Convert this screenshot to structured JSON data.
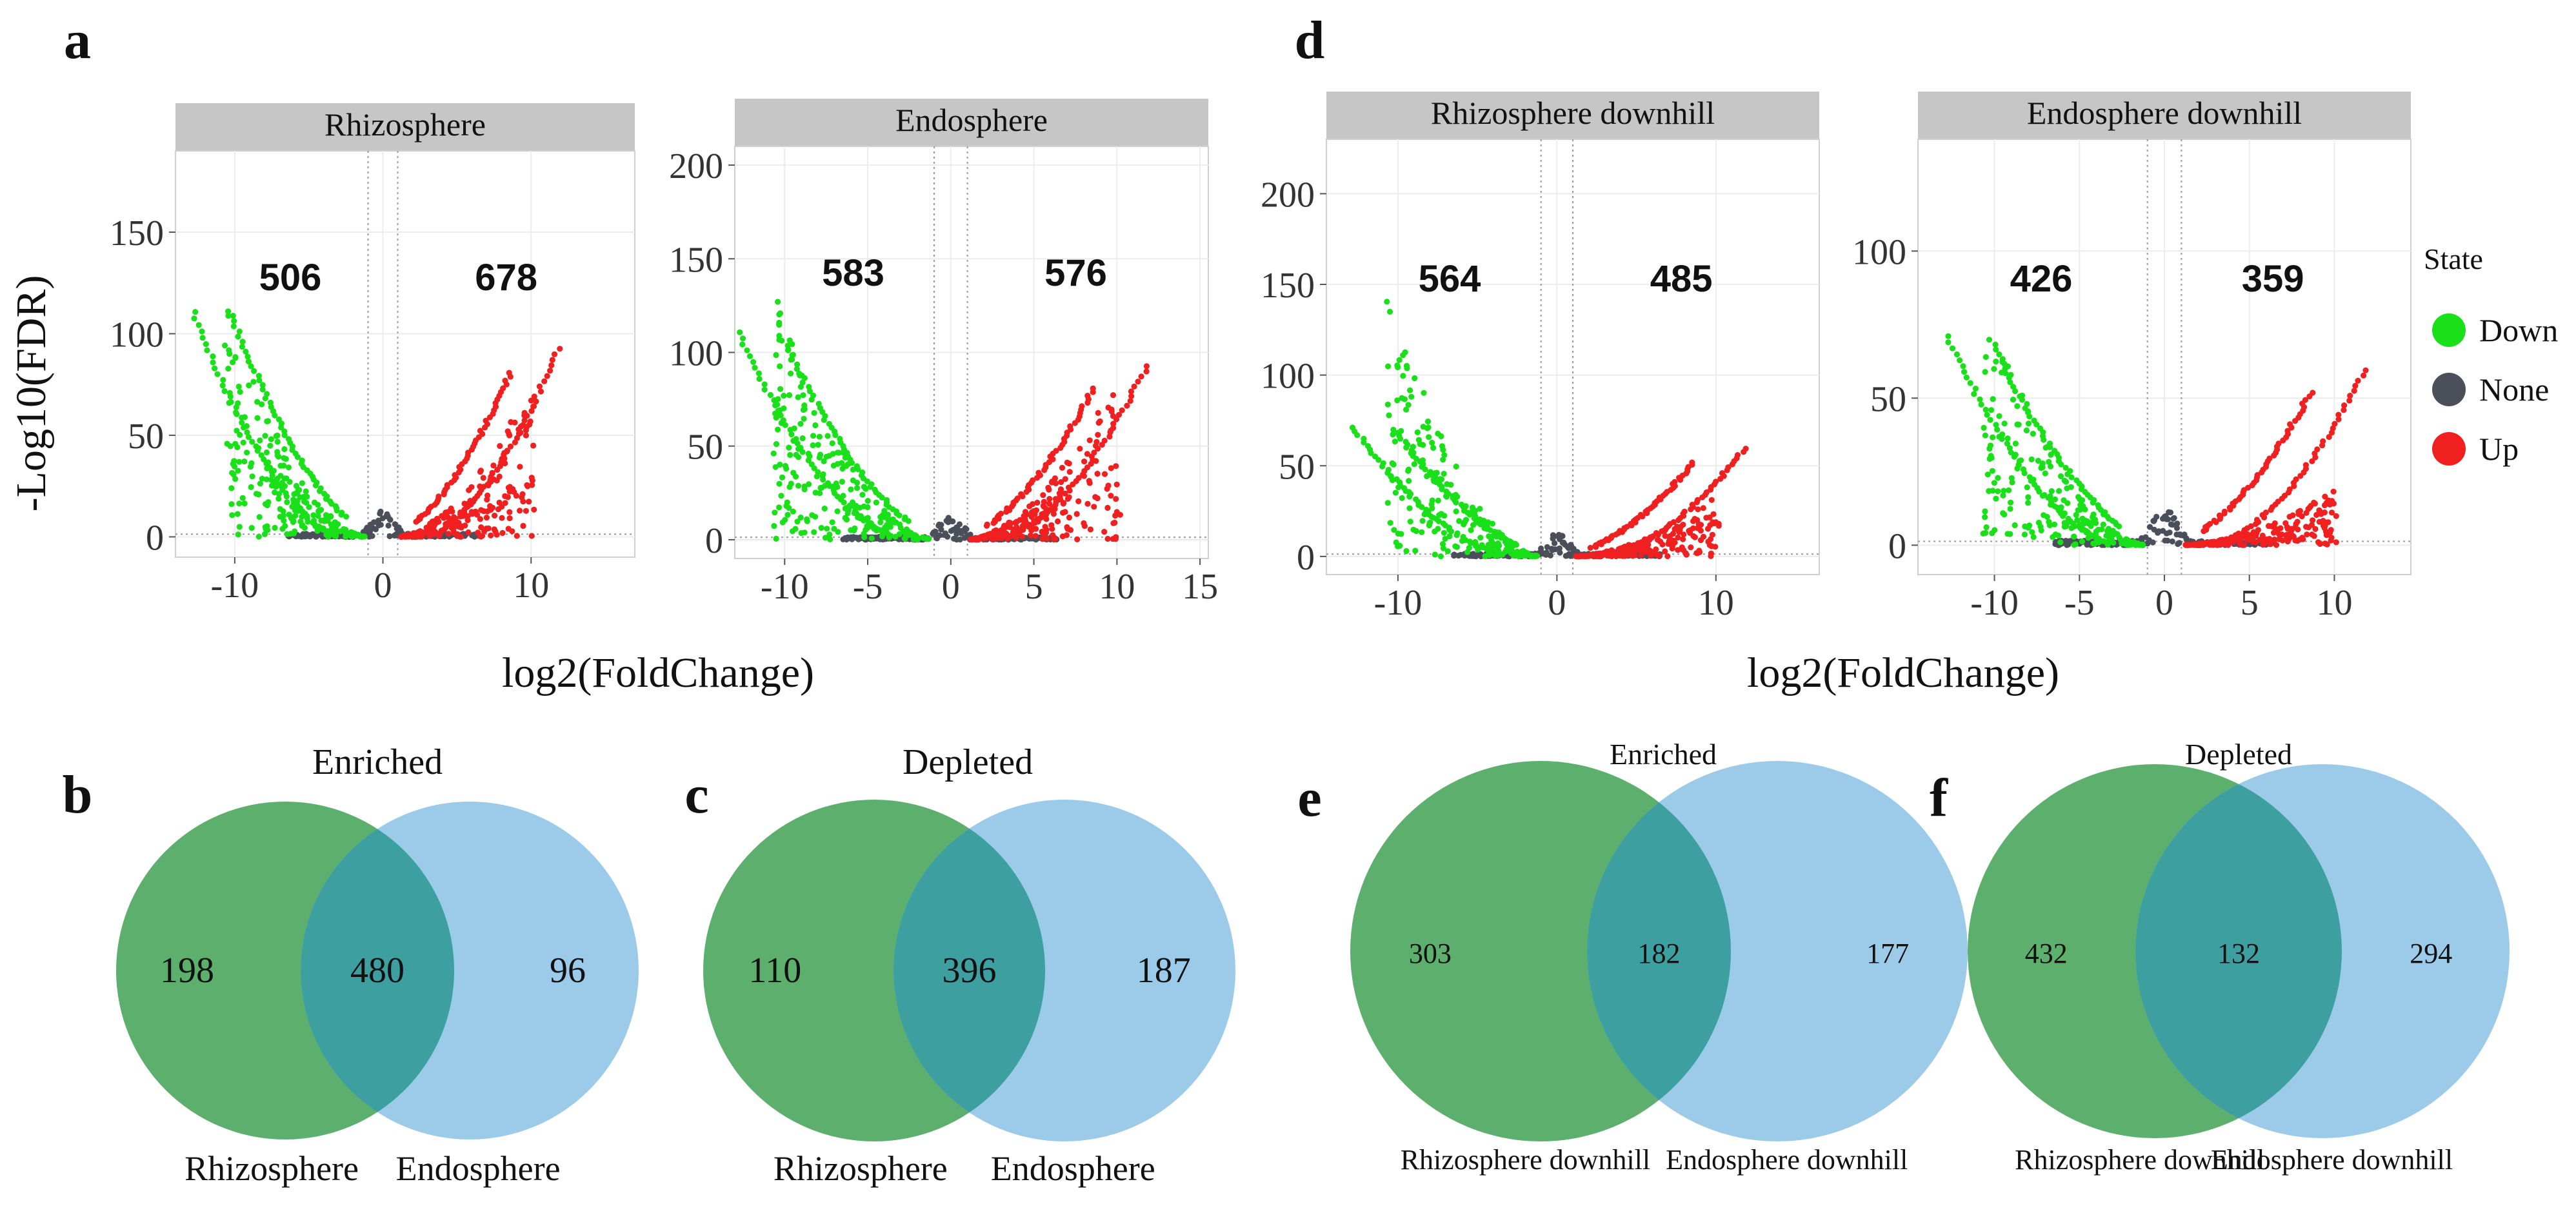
{
  "chart_data": [
    {
      "panel": "a",
      "type": "scatter",
      "panel_label": "a",
      "facets": [
        {
          "title": "Rhizosphere",
          "xlim": [
            -14,
            17
          ],
          "ylim": [
            -10,
            190
          ],
          "xticks": [
            -10,
            0,
            10
          ],
          "yticks": [
            0,
            50,
            100,
            150
          ],
          "down_count": "506",
          "up_count": "678"
        },
        {
          "title": "Endosphere",
          "xlim": [
            -13,
            15.5
          ],
          "ylim": [
            -10,
            210
          ],
          "xticks": [
            -10,
            -5,
            0,
            5,
            10,
            15
          ],
          "yticks": [
            0,
            50,
            100,
            150,
            200
          ],
          "down_count": "583",
          "up_count": "576"
        }
      ],
      "xlabel": "log2(FoldChange)",
      "ylabel": "-Log10(FDR)",
      "thresholds": {
        "x": [
          -1,
          1
        ],
        "y": 1.3
      }
    },
    {
      "panel": "d",
      "type": "scatter",
      "panel_label": "d",
      "facets": [
        {
          "title": "Rhizosphere downhill",
          "xlim": [
            -14.5,
            16.5
          ],
          "ylim": [
            -10,
            230
          ],
          "xticks": [
            -10,
            0,
            10
          ],
          "yticks": [
            0,
            50,
            100,
            150,
            200
          ],
          "down_count": "564",
          "up_count": "485"
        },
        {
          "title": "Endosphere downhill",
          "xlim": [
            -14.5,
            14.5
          ],
          "ylim": [
            -10,
            138
          ],
          "xticks": [
            -10,
            -5,
            0,
            5,
            10
          ],
          "yticks": [
            0,
            50,
            100
          ],
          "down_count": "426",
          "up_count": "359"
        }
      ],
      "xlabel": "log2(FoldChange)",
      "legend": {
        "title": "State",
        "position": "right",
        "items": [
          {
            "label": "Down",
            "color": "#19e019"
          },
          {
            "label": "None",
            "color": "#4a4f5a"
          },
          {
            "label": "Up",
            "color": "#f02020"
          }
        ]
      }
    },
    {
      "panel": "b",
      "type": "venn",
      "panel_label": "b",
      "title": "Enriched",
      "sets": [
        "Rhizosphere",
        "Endosphere"
      ],
      "values": [
        198,
        480,
        96
      ]
    },
    {
      "panel": "c",
      "type": "venn",
      "panel_label": "c",
      "title": "Depleted",
      "sets": [
        "Rhizosphere",
        "Endosphere"
      ],
      "values": [
        110,
        396,
        187
      ]
    },
    {
      "panel": "e",
      "type": "venn",
      "panel_label": "e",
      "title": "Enriched",
      "sets": [
        "Rhizosphere downhill",
        "Endosphere downhill"
      ],
      "values": [
        303,
        182,
        177
      ]
    },
    {
      "panel": "f",
      "type": "venn",
      "panel_label": "f",
      "title": "Depleted",
      "sets": [
        "Rhizosphere downhill",
        "Endosphere downhill"
      ],
      "values": [
        432,
        132,
        294
      ]
    }
  ],
  "colors": {
    "down": "#19e019",
    "none": "#4a4f5a",
    "up": "#f02020",
    "venn_left": "#5daf6e",
    "venn_right": "#9ccbea",
    "venn_overlap": "#3e9fa0",
    "strip": "#c6c6c6"
  }
}
